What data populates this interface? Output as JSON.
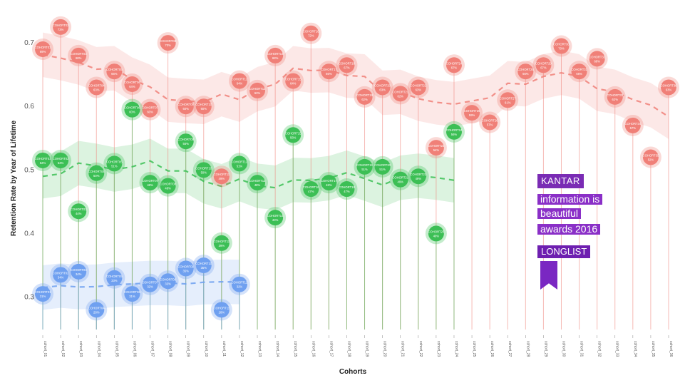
{
  "chart_data": {
    "type": "scatter",
    "xlabel": "Cohorts",
    "ylabel": "Retention Rate by Year of Lifetime",
    "ylim": [
      0.24,
      0.745
    ],
    "yticks": [
      0.3,
      0.4,
      0.5,
      0.6,
      0.7
    ],
    "categories": [
      "cohort_01",
      "cohort_02",
      "cohort_03",
      "cohort_04",
      "cohort_05",
      "cohort_06",
      "cohort_07",
      "cohort_08",
      "cohort_09",
      "cohort_10",
      "cohort_11",
      "cohort_12",
      "cohort_13",
      "cohort_14",
      "cohort_15",
      "cohort_16",
      "cohort_17",
      "cohort_18",
      "cohort_19",
      "cohort_20",
      "cohort_21",
      "cohort_22",
      "cohort_23",
      "cohort_24",
      "cohort_25",
      "cohort_26",
      "cohort_27",
      "cohort_28",
      "cohort_29",
      "cohort_30",
      "cohort_31",
      "cohort_32",
      "cohort_33",
      "cohort_34",
      "cohort_35",
      "cohort_36"
    ],
    "series": [
      {
        "color": "#f08078",
        "trend": "dashed",
        "values": [
          0.69,
          0.725,
          0.68,
          0.63,
          0.655,
          0.635,
          0.595,
          0.7,
          0.6,
          0.6,
          0.49,
          0.64,
          0.625,
          0.68,
          0.64,
          0.715,
          0.655,
          0.665,
          0.615,
          0.63,
          0.62,
          0.63,
          0.535,
          0.665,
          0.59,
          0.575,
          0.61,
          0.655,
          0.665,
          0.695,
          0.655,
          0.675,
          0.615,
          0.57,
          0.52,
          0.63
        ]
      },
      {
        "color": "#3cbf55",
        "trend": "dashed",
        "values": [
          0.515,
          0.515,
          0.435,
          0.495,
          0.51,
          0.595,
          0.48,
          0.475,
          0.545,
          0.5,
          0.385,
          0.51,
          0.48,
          0.425,
          0.555,
          0.47,
          0.48,
          0.47,
          0.505,
          0.505,
          0.485,
          0.49,
          0.4,
          0.56
        ]
      },
      {
        "color": "#6fa0f0",
        "trend": "dashed",
        "values": [
          0.305,
          0.335,
          0.34,
          0.28,
          0.33,
          0.305,
          0.32,
          0.325,
          0.345,
          0.35,
          0.28,
          0.32
        ]
      }
    ],
    "grid": false,
    "badge": {
      "brand": "KANTAR",
      "line1": "information is",
      "line2": "beautiful",
      "line3": "awards 2016",
      "line4": "LONGLIST"
    }
  }
}
